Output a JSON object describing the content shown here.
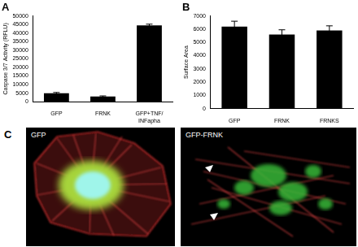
{
  "chart_data": [
    {
      "type": "bar",
      "title": "A",
      "categories": [
        "GFP",
        "FRNK",
        "GFP+TNF/INFapha"
      ],
      "values": [
        5000,
        3000,
        44500
      ],
      "errors": [
        400,
        400,
        700
      ],
      "color": "#000000",
      "y_label": "Caspase 3/7 Activity (RFLU)",
      "ylim": [
        0,
        50000
      ],
      "yticks": [
        0,
        5000,
        10000,
        15000,
        20000,
        25000,
        30000,
        35000,
        40000,
        45000,
        50000
      ],
      "grid": false
    },
    {
      "type": "bar",
      "title": "B",
      "categories": [
        "GFP",
        "FRNK",
        "FRNKS"
      ],
      "values": [
        6200,
        5600,
        5900
      ],
      "errors": [
        400,
        350,
        350
      ],
      "color": "#000000",
      "y_label": "Surface Area",
      "ylim": [
        0,
        7000
      ],
      "yticks": [
        0,
        1000,
        2000,
        3000,
        4000,
        5000,
        6000,
        7000
      ],
      "grid": false
    }
  ],
  "images": {
    "title": "C",
    "panels": [
      {
        "label": "GFP"
      },
      {
        "label": "GFP-FRNK"
      }
    ]
  }
}
